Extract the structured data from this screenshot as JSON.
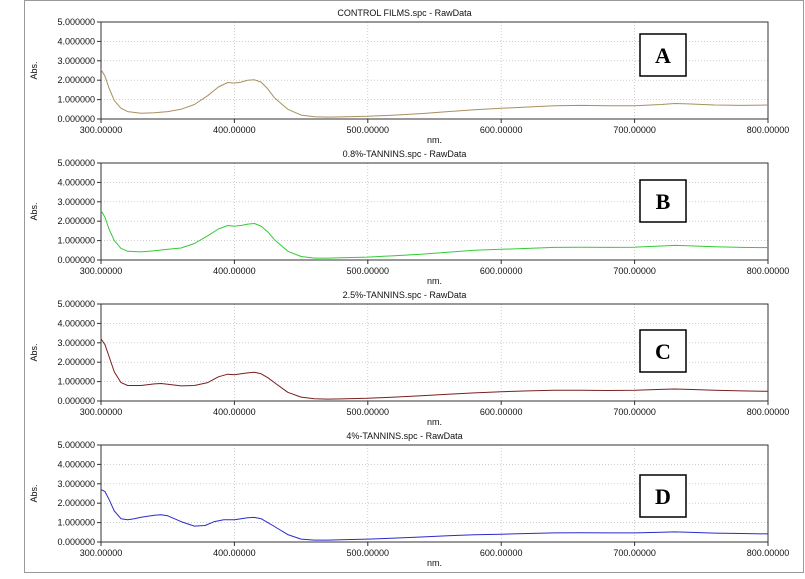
{
  "window": {
    "border_color": "#9a9a9a",
    "background": "#ffffff"
  },
  "chart_data": [
    {
      "type": "line",
      "title": "CONTROL FILMS.spc - RawData",
      "xlabel": "nm.",
      "ylabel": "Abs.",
      "xlim": [
        300,
        800
      ],
      "ylim": [
        0,
        5
      ],
      "xticks": [
        "300.00000",
        "400.00000",
        "500.00000",
        "600.00000",
        "700.00000",
        "800.00000"
      ],
      "yticks": [
        "0.000000",
        "1.000000",
        "2.000000",
        "3.000000",
        "4.000000",
        "5.000000"
      ],
      "grid": true,
      "panel_label": "A",
      "series": [
        {
          "color": "#a89060",
          "x": [
            300,
            303,
            306,
            310,
            315,
            320,
            330,
            340,
            350,
            360,
            370,
            380,
            388,
            395,
            400,
            405,
            410,
            415,
            420,
            425,
            430,
            440,
            450,
            460,
            470,
            480,
            500,
            520,
            540,
            560,
            580,
            600,
            620,
            640,
            660,
            680,
            700,
            720,
            730,
            740,
            760,
            780,
            800
          ],
          "y": [
            2.55,
            2.2,
            1.6,
            0.95,
            0.55,
            0.38,
            0.3,
            0.32,
            0.38,
            0.5,
            0.75,
            1.2,
            1.65,
            1.88,
            1.85,
            1.9,
            2.0,
            2.02,
            1.9,
            1.55,
            1.1,
            0.5,
            0.2,
            0.12,
            0.1,
            0.11,
            0.14,
            0.2,
            0.28,
            0.38,
            0.48,
            0.55,
            0.62,
            0.68,
            0.7,
            0.68,
            0.68,
            0.75,
            0.8,
            0.78,
            0.72,
            0.7,
            0.72
          ]
        }
      ]
    },
    {
      "type": "line",
      "title": "0.8%-TANNINS.spc - RawData",
      "xlabel": "nm.",
      "ylabel": "Abs.",
      "xlim": [
        300,
        800
      ],
      "ylim": [
        0,
        5
      ],
      "xticks": [
        "300.00000",
        "400.00000",
        "500.00000",
        "600.00000",
        "700.00000",
        "800.00000"
      ],
      "yticks": [
        "0.000000",
        "1.000000",
        "2.000000",
        "3.000000",
        "4.000000",
        "5.000000"
      ],
      "grid": true,
      "panel_label": "B",
      "series": [
        {
          "color": "#33cc33",
          "x": [
            300,
            303,
            306,
            310,
            315,
            320,
            330,
            340,
            350,
            360,
            370,
            380,
            388,
            395,
            400,
            405,
            410,
            415,
            420,
            425,
            430,
            440,
            450,
            460,
            470,
            480,
            500,
            520,
            540,
            560,
            580,
            600,
            620,
            640,
            660,
            680,
            700,
            720,
            730,
            740,
            760,
            780,
            800
          ],
          "y": [
            2.55,
            2.2,
            1.6,
            1.0,
            0.6,
            0.45,
            0.42,
            0.48,
            0.55,
            0.62,
            0.85,
            1.25,
            1.6,
            1.78,
            1.75,
            1.78,
            1.85,
            1.88,
            1.75,
            1.45,
            1.05,
            0.45,
            0.18,
            0.1,
            0.1,
            0.12,
            0.15,
            0.22,
            0.3,
            0.4,
            0.5,
            0.55,
            0.6,
            0.65,
            0.66,
            0.65,
            0.66,
            0.72,
            0.75,
            0.73,
            0.68,
            0.65,
            0.64
          ]
        }
      ]
    },
    {
      "type": "line",
      "title": "2.5%-TANNINS.spc - RawData",
      "xlabel": "nm.",
      "ylabel": "Abs.",
      "xlim": [
        300,
        800
      ],
      "ylim": [
        0,
        5
      ],
      "xticks": [
        "300.00000",
        "400.00000",
        "500.00000",
        "600.00000",
        "700.00000",
        "800.00000"
      ],
      "yticks": [
        "0.000000",
        "1.000000",
        "2.000000",
        "3.000000",
        "4.000000",
        "5.000000"
      ],
      "grid": true,
      "panel_label": "C",
      "series": [
        {
          "color": "#7a1f1f",
          "x": [
            300,
            303,
            306,
            310,
            315,
            320,
            330,
            340,
            345,
            350,
            360,
            370,
            380,
            388,
            395,
            400,
            405,
            410,
            415,
            420,
            425,
            430,
            440,
            450,
            460,
            470,
            480,
            500,
            520,
            540,
            560,
            580,
            600,
            620,
            640,
            660,
            680,
            700,
            720,
            730,
            740,
            760,
            780,
            800
          ],
          "y": [
            3.2,
            2.9,
            2.3,
            1.5,
            0.95,
            0.8,
            0.8,
            0.88,
            0.9,
            0.86,
            0.78,
            0.8,
            0.95,
            1.25,
            1.38,
            1.35,
            1.4,
            1.45,
            1.48,
            1.4,
            1.2,
            0.95,
            0.45,
            0.2,
            0.12,
            0.1,
            0.11,
            0.14,
            0.2,
            0.27,
            0.35,
            0.42,
            0.48,
            0.52,
            0.55,
            0.55,
            0.54,
            0.55,
            0.6,
            0.62,
            0.6,
            0.55,
            0.52,
            0.5
          ]
        }
      ]
    },
    {
      "type": "line",
      "title": "4%-TANNINS.spc - RawData",
      "xlabel": "nm.",
      "ylabel": "Abs.",
      "xlim": [
        300,
        800
      ],
      "ylim": [
        0,
        5
      ],
      "xticks": [
        "300.00000",
        "400.00000",
        "500.00000",
        "600.00000",
        "700.00000",
        "800.00000"
      ],
      "yticks": [
        "0.000000",
        "1.000000",
        "2.000000",
        "3.000000",
        "4.000000",
        "5.000000"
      ],
      "grid": true,
      "panel_label": "D",
      "series": [
        {
          "color": "#2b2bcc",
          "x": [
            300,
            303,
            306,
            310,
            315,
            320,
            325,
            330,
            340,
            345,
            350,
            355,
            360,
            370,
            378,
            385,
            392,
            400,
            405,
            410,
            415,
            420,
            425,
            430,
            440,
            450,
            460,
            470,
            480,
            500,
            520,
            540,
            560,
            580,
            600,
            620,
            640,
            660,
            680,
            700,
            720,
            730,
            740,
            760,
            780,
            800
          ],
          "y": [
            2.7,
            2.6,
            2.2,
            1.6,
            1.2,
            1.15,
            1.2,
            1.28,
            1.38,
            1.4,
            1.35,
            1.2,
            1.05,
            0.82,
            0.85,
            1.05,
            1.15,
            1.15,
            1.2,
            1.25,
            1.27,
            1.2,
            1.0,
            0.8,
            0.38,
            0.15,
            0.1,
            0.1,
            0.12,
            0.15,
            0.2,
            0.26,
            0.32,
            0.37,
            0.4,
            0.44,
            0.47,
            0.48,
            0.47,
            0.47,
            0.5,
            0.52,
            0.5,
            0.46,
            0.44,
            0.42
          ]
        }
      ]
    }
  ]
}
